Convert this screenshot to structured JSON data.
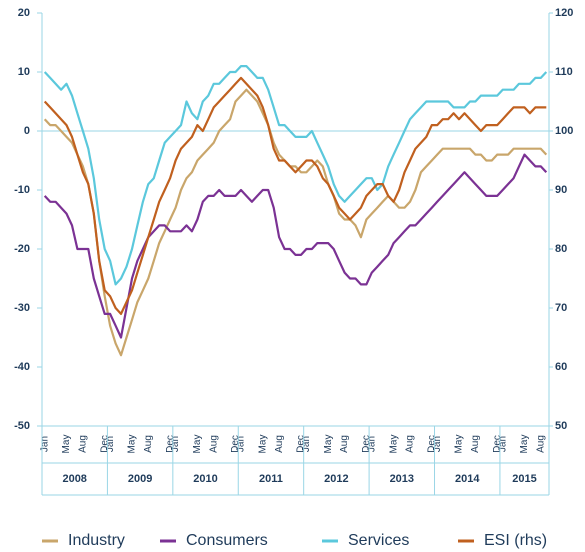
{
  "chart_data": {
    "type": "line",
    "categories": [
      "Jan",
      null,
      null,
      null,
      "May",
      null,
      null,
      "Aug",
      null,
      null,
      null,
      "Dec",
      "Jan",
      null,
      null,
      null,
      "May",
      null,
      null,
      "Aug",
      null,
      null,
      null,
      "Dec",
      "Jan",
      null,
      null,
      null,
      "May",
      null,
      null,
      "Aug",
      null,
      null,
      null,
      "Dec",
      "Jan",
      null,
      null,
      null,
      "May",
      null,
      null,
      "Aug",
      null,
      null,
      null,
      "Dec",
      "Jan",
      null,
      null,
      null,
      "May",
      null,
      null,
      "Aug",
      null,
      null,
      null,
      "Dec",
      "Jan",
      null,
      null,
      null,
      "May",
      null,
      null,
      "Aug",
      null,
      null,
      null,
      "Dec",
      "Jan",
      null,
      null,
      null,
      "May",
      null,
      null,
      "Aug",
      null,
      null,
      null,
      "Dec",
      "Jan",
      null,
      null,
      null,
      "May",
      null,
      null,
      "Aug",
      null
    ],
    "years": [
      "2008",
      "2009",
      "2010",
      "2011",
      "2012",
      "2013",
      "2014",
      "2015"
    ],
    "ylim": [
      -50,
      20
    ],
    "yticks": [
      -50,
      -40,
      -30,
      -20,
      -10,
      0,
      10,
      20
    ],
    "y2lim": [
      50,
      120
    ],
    "y2ticks": [
      50,
      60,
      70,
      80,
      90,
      100,
      110,
      120
    ],
    "series": [
      {
        "name": "Industry",
        "color": "#c9a66b",
        "values": [
          2,
          1,
          1,
          0,
          -1,
          -2,
          -4,
          -6,
          -9,
          -14,
          -22,
          -28,
          -33,
          -36,
          -38,
          -35,
          -32,
          -29,
          -27,
          -25,
          -22,
          -19,
          -17,
          -15,
          -13,
          -10,
          -8,
          -7,
          -5,
          -4,
          -3,
          -2,
          0,
          1,
          2,
          5,
          6,
          7,
          6,
          5,
          3,
          1,
          -2,
          -4,
          -5,
          -6,
          -6,
          -7,
          -7,
          -6,
          -5,
          -6,
          -9,
          -11,
          -14,
          -15,
          -15,
          -16,
          -18,
          -15,
          -14,
          -13,
          -12,
          -11,
          -12,
          -13,
          -13,
          -12,
          -10,
          -7,
          -6,
          -5,
          -4,
          -3,
          -3,
          -3,
          -3,
          -3,
          -3,
          -4,
          -4,
          -5,
          -5,
          -4,
          -4,
          -4,
          -3,
          -3,
          -3,
          -3,
          -3,
          -3,
          -4
        ]
      },
      {
        "name": "Consumers",
        "color": "#7b3294",
        "values": [
          -11,
          -12,
          -12,
          -13,
          -14,
          -16,
          -20,
          -20,
          -20,
          -25,
          -28,
          -31,
          -31,
          -33,
          -35,
          -30,
          -25,
          -22,
          -20,
          -18,
          -17,
          -16,
          -16,
          -17,
          -17,
          -17,
          -16,
          -17,
          -15,
          -12,
          -11,
          -11,
          -10,
          -11,
          -11,
          -11,
          -10,
          -11,
          -12,
          -11,
          -10,
          -10,
          -13,
          -18,
          -20,
          -20,
          -21,
          -21,
          -20,
          -20,
          -19,
          -19,
          -19,
          -20,
          -22,
          -24,
          -25,
          -25,
          -26,
          -26,
          -24,
          -23,
          -22,
          -21,
          -19,
          -18,
          -17,
          -16,
          -16,
          -15,
          -14,
          -13,
          -12,
          -11,
          -10,
          -9,
          -8,
          -7,
          -8,
          -9,
          -10,
          -11,
          -11,
          -11,
          -10,
          -9,
          -8,
          -6,
          -4,
          -5,
          -6,
          -6,
          -7
        ]
      },
      {
        "name": "Services",
        "color": "#5bc8dc",
        "values": [
          10,
          9,
          8,
          7,
          8,
          6,
          3,
          0,
          -3,
          -8,
          -15,
          -20,
          -22,
          -26,
          -25,
          -23,
          -20,
          -16,
          -12,
          -9,
          -8,
          -5,
          -2,
          -1,
          0,
          1,
          5,
          3,
          2,
          5,
          6,
          8,
          8,
          9,
          10,
          10,
          11,
          11,
          10,
          9,
          9,
          7,
          4,
          1,
          1,
          0,
          -1,
          -1,
          -1,
          0,
          -2,
          -4,
          -6,
          -9,
          -11,
          -12,
          -11,
          -10,
          -9,
          -8,
          -8,
          -10,
          -9,
          -6,
          -4,
          -2,
          0,
          2,
          3,
          4,
          5,
          5,
          5,
          5,
          5,
          4,
          4,
          4,
          5,
          5,
          6,
          6,
          6,
          6,
          7,
          7,
          7,
          8,
          8,
          8,
          9,
          9,
          10
        ]
      },
      {
        "name": "ESI (rhs)",
        "color": "#c0601f",
        "axis": "y2",
        "values": [
          105,
          104,
          103,
          102,
          101,
          99,
          96,
          93,
          91,
          86,
          78,
          73,
          72,
          70,
          69,
          71,
          73,
          76,
          79,
          82,
          85,
          88,
          90,
          92,
          95,
          97,
          98,
          99,
          101,
          100,
          102,
          104,
          105,
          106,
          107,
          108,
          109,
          108,
          107,
          106,
          104,
          101,
          97,
          95,
          95,
          94,
          93,
          94,
          95,
          95,
          94,
          92,
          91,
          89,
          87,
          86,
          85,
          86,
          87,
          89,
          90,
          91,
          91,
          89,
          88,
          90,
          93,
          95,
          97,
          98,
          99,
          101,
          101,
          102,
          102,
          103,
          102,
          103,
          102,
          101,
          100,
          101,
          101,
          101,
          102,
          103,
          104,
          104,
          104,
          103,
          104,
          104,
          104
        ]
      }
    ]
  }
}
